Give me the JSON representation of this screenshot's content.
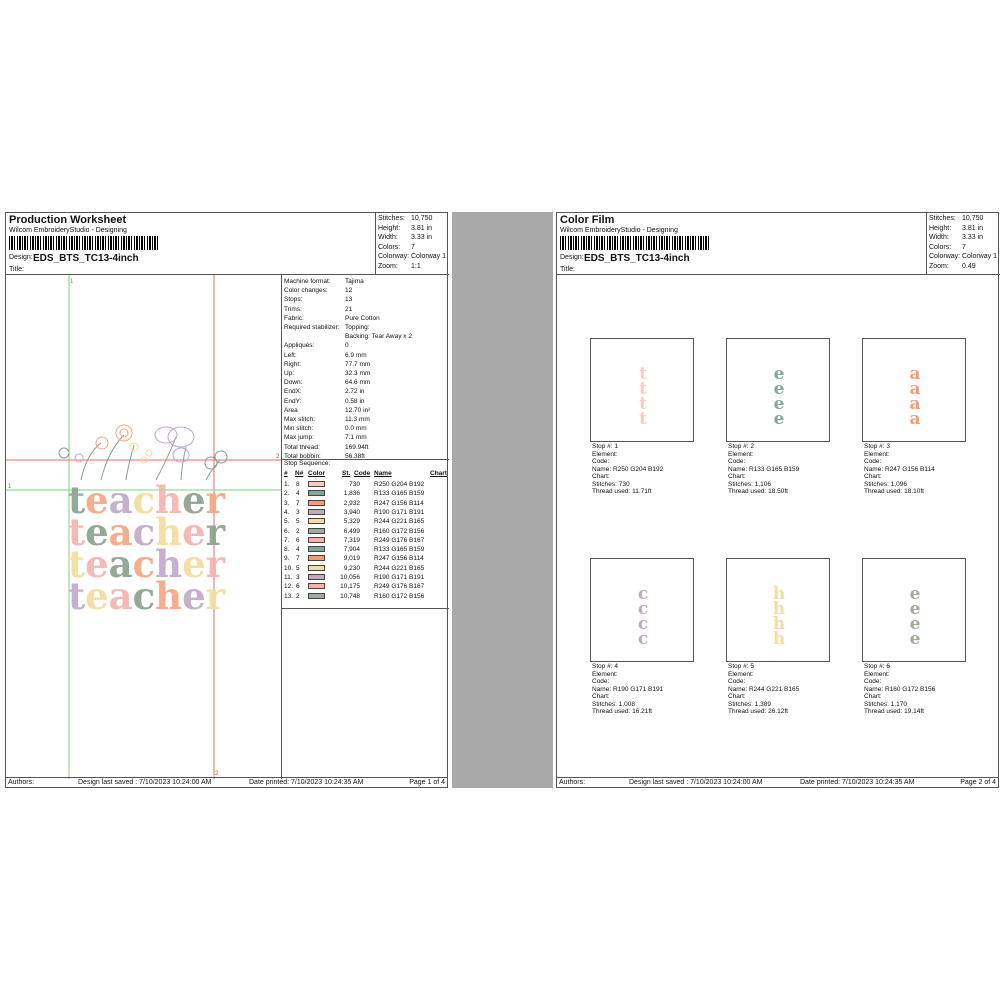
{
  "pages": [
    {
      "title": "Production Worksheet",
      "company": "Wilcom EmbroideryStudio - Designing",
      "design_label": "Design:",
      "design_name": "EDS_BTS_TC13-4inch",
      "title_label": "Title:",
      "stats": [
        {
          "k": "Stitches:",
          "v": "10,750"
        },
        {
          "k": "Height:",
          "v": "3.81 in"
        },
        {
          "k": "Width:",
          "v": "3.33 in"
        },
        {
          "k": "Colors:",
          "v": "7"
        },
        {
          "k": "Colorway:",
          "v": "Colorway 1"
        },
        {
          "k": "Zoom:",
          "v": "1:1"
        }
      ],
      "footer": {
        "authors": "Authors:",
        "saved": "Design last saved : 7/10/2023 10:24:00 AM",
        "printed": "Date printed: 7/10/2023 10:24:35 AM",
        "page": "Page 1 of 4"
      }
    },
    {
      "title": "Color Film",
      "company": "Wilcom EmbroideryStudio - Designing",
      "design_label": "Design:",
      "design_name": "EDS_BTS_TC13-4inch",
      "title_label": "Title:",
      "stats": [
        {
          "k": "Stitches:",
          "v": "10,750"
        },
        {
          "k": "Height:",
          "v": "3.81 in"
        },
        {
          "k": "Width:",
          "v": "3.33 in"
        },
        {
          "k": "Colors:",
          "v": "7"
        },
        {
          "k": "Colorway:",
          "v": "Colorway 1"
        },
        {
          "k": "Zoom:",
          "v": "0.49"
        }
      ],
      "footer": {
        "authors": "Authors:",
        "saved": "Design last saved : 7/10/2023 10:24:00 AM",
        "printed": "Date printed: 7/10/2023 10:24:35 AM",
        "page": "Page 2 of 4"
      }
    }
  ],
  "design_word": "teacher",
  "design_colors": [
    "#8aa08c",
    "#f4a582",
    "#c0a8cc",
    "#f3dc9b",
    "#f5b3ad"
  ],
  "properties": [
    {
      "k": "Machine format:",
      "v": "Tajima"
    },
    {
      "k": "Color changes:",
      "v": "12"
    },
    {
      "k": "Stops:",
      "v": "13"
    },
    {
      "k": "Trims:",
      "v": "21"
    },
    {
      "k": "Fabric:",
      "v": "Pure Cotton"
    },
    {
      "k": "Required stabilizer:",
      "v": "Topping:"
    },
    {
      "k": "",
      "v": "Backing: Tear Away x 2"
    },
    {
      "k": "Appliqués:",
      "v": "0"
    },
    {
      "k": "Left:",
      "v": "6.9 mm"
    },
    {
      "k": "Right:",
      "v": "77.7 mm"
    },
    {
      "k": "Up:",
      "v": "32.3 mm"
    },
    {
      "k": "Down:",
      "v": "64.6 mm"
    },
    {
      "k": "EndX:",
      "v": "2.72 in"
    },
    {
      "k": "EndY:",
      "v": "0.58 in"
    },
    {
      "k": "Area",
      "v": "12.70 in²"
    },
    {
      "k": "Max stitch:",
      "v": "11.3 mm"
    },
    {
      "k": "Min stitch:",
      "v": "0.0 mm"
    },
    {
      "k": "Max jump:",
      "v": "7.1 mm"
    },
    {
      "k": "Total thread:",
      "v": "169.94ft"
    },
    {
      "k": "Total bobbin:",
      "v": "56.38ft"
    }
  ],
  "stop_sequence": {
    "title": "Stop Sequence:",
    "headers": {
      "num": "#",
      "n": "N#",
      "color": "Color",
      "st": "St.",
      "code": "Code",
      "name": "Name",
      "chart": "Chart"
    },
    "rows": [
      {
        "num": "1.",
        "n": "8",
        "hex": "#FACCC0",
        "st": "730",
        "name": "R250 G204 B192"
      },
      {
        "num": "2.",
        "n": "4",
        "hex": "#85A59F",
        "st": "1,836",
        "name": "R133 G165 B159"
      },
      {
        "num": "3.",
        "n": "7",
        "hex": "#F79C72",
        "st": "2,932",
        "name": "R247 G156 B114"
      },
      {
        "num": "4.",
        "n": "3",
        "hex": "#BEABBF",
        "st": "3,940",
        "name": "R190 G171 B191"
      },
      {
        "num": "5.",
        "n": "5",
        "hex": "#F4DDA5",
        "st": "5,329",
        "name": "R244 G221 B165"
      },
      {
        "num": "6.",
        "n": "2",
        "hex": "#A0AC9C",
        "st": "6,499",
        "name": "R160 G172 B156"
      },
      {
        "num": "7.",
        "n": "6",
        "hex": "#F9B0A7",
        "st": "7,319",
        "name": "R249 G176 B167"
      },
      {
        "num": "8.",
        "n": "4",
        "hex": "#85A59F",
        "st": "7,904",
        "name": "R133 G165 B159"
      },
      {
        "num": "9.",
        "n": "7",
        "hex": "#F79C72",
        "st": "9,019",
        "name": "R247 G156 B114"
      },
      {
        "num": "10.",
        "n": "5",
        "hex": "#F4DDA5",
        "st": "9,230",
        "name": "R244 G221 B165"
      },
      {
        "num": "11.",
        "n": "3",
        "hex": "#BEABBF",
        "st": "10,056",
        "name": "R190 G171 B191"
      },
      {
        "num": "12.",
        "n": "6",
        "hex": "#F9B0A7",
        "st": "10,175",
        "name": "R249 G176 B167"
      },
      {
        "num": "13.",
        "n": "2",
        "hex": "#A0AC9C",
        "st": "10,748",
        "name": "R160 G172 B156"
      }
    ]
  },
  "guides": {
    "h1": "1",
    "h2": "2",
    "v1": "1",
    "v2": "2"
  },
  "film_items": [
    {
      "letter": "t",
      "hex": "#FACCC0",
      "stop": "Stop #: 1",
      "element": "Element:",
      "code": "Code:",
      "name": "Name: R250 G204 B192",
      "chart": "Chart:",
      "stitches": "Stitches: 730",
      "thread": "Thread used: 11.71ft"
    },
    {
      "letter": "e",
      "hex": "#85A59F",
      "stop": "Stop #: 2",
      "element": "Element:",
      "code": "Code:",
      "name": "Name: R133 G165 B159",
      "chart": "Chart:",
      "stitches": "Stitches: 1,106",
      "thread": "Thread used: 18.50ft"
    },
    {
      "letter": "a",
      "hex": "#F79C72",
      "stop": "Stop #: 3",
      "element": "Element:",
      "code": "Code:",
      "name": "Name: R247 G156 B114",
      "chart": "Chart:",
      "stitches": "Stitches: 1,096",
      "thread": "Thread used: 18.10ft"
    },
    {
      "letter": "c",
      "hex": "#BEABBF",
      "stop": "Stop #: 4",
      "element": "Element:",
      "code": "Code:",
      "name": "Name: R190 G171 B191",
      "chart": "Chart:",
      "stitches": "Stitches: 1,008",
      "thread": "Thread used: 16.21ft"
    },
    {
      "letter": "h",
      "hex": "#F4DDA5",
      "stop": "Stop #: 5",
      "element": "Element:",
      "code": "Code:",
      "name": "Name: R244 G221 B165",
      "chart": "Chart:",
      "stitches": "Stitches: 1,389",
      "thread": "Thread used: 26.12ft"
    },
    {
      "letter": "e",
      "hex": "#A0AC9C",
      "stop": "Stop #: 6",
      "element": "Element:",
      "code": "Code:",
      "name": "Name: R160 G172 B156",
      "chart": "Chart:",
      "stitches": "Stitches: 1,170",
      "thread": "Thread used: 19.14ft"
    }
  ]
}
